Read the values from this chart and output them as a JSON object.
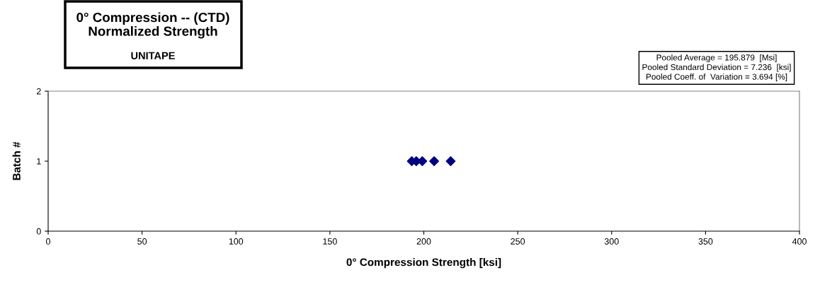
{
  "chart_data": {
    "type": "scatter",
    "title": "0° Compression -- (CTD)\nNormalized Strength",
    "subtitle": "UNITAPE",
    "xlabel": "0° Compression Strength [ksi]",
    "ylabel": "Batch #",
    "annotations": [
      "Pooled Average = 195.879  [Msi]\nPooled Standard Deviation = 7.236  [ksi]\nPooled Coeff. of  Variation = 3.694 [%]"
    ],
    "x": [
      193.6,
      196,
      199.2,
      205.5,
      214.3
    ],
    "series": [
      {
        "color": "#000080",
        "values": [
          1,
          1,
          1,
          1,
          1
        ]
      }
    ],
    "marker": "diamond",
    "xlim": [
      0,
      400
    ],
    "xticks": [
      0,
      50,
      100,
      150,
      200,
      250,
      300,
      350,
      400
    ],
    "ylim": [
      0,
      2
    ],
    "yticks": [
      0,
      1,
      2
    ],
    "grid": false,
    "legend": false
  }
}
